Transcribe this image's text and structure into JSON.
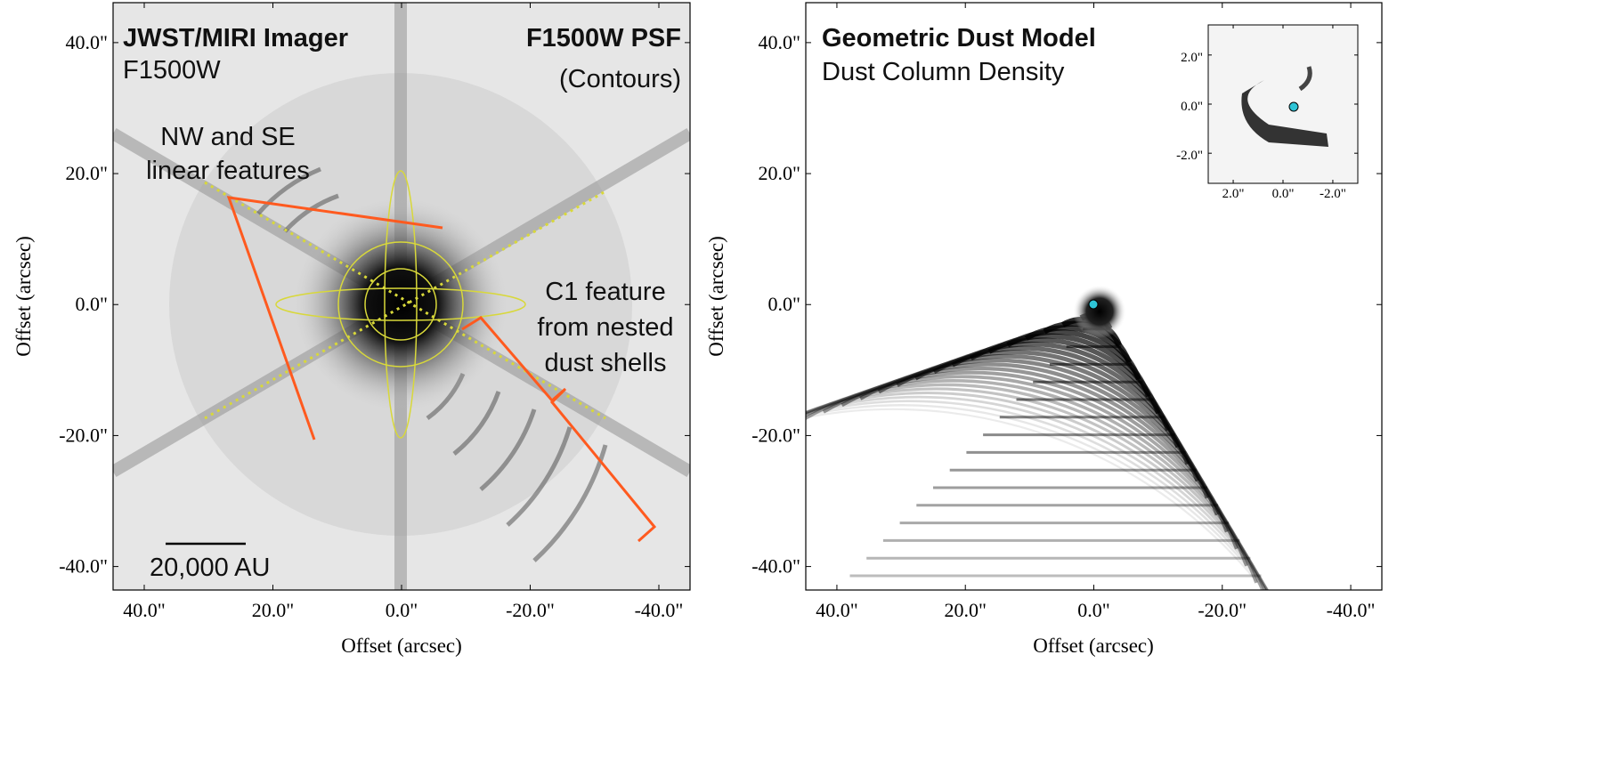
{
  "left_panel": {
    "title": "JWST/MIRI Imager",
    "subtitle": "F1500W",
    "psf_title": "F1500W PSF",
    "psf_subtitle": "(Contours)",
    "annotation_nw_se": [
      "NW and SE",
      "linear features"
    ],
    "annotation_c1": [
      "C1 feature",
      "from nested",
      "dust shells"
    ],
    "scale_bar": "20,000 AU",
    "xlabel": "Offset (arcsec)",
    "ylabel": "Offset (arcsec)",
    "xticks": [
      "40.0\"",
      "20.0\"",
      "0.0\"",
      "-20.0\"",
      "-40.0\""
    ],
    "yticks": [
      "40.0\"",
      "20.0\"",
      "0.0\"",
      "-20.0\"",
      "-40.0\""
    ]
  },
  "right_panel": {
    "title": "Geometric Dust Model",
    "subtitle": "Dust Column Density",
    "xlabel": "Offset (arcsec)",
    "ylabel": "Offset (arcsec)",
    "xticks": [
      "40.0\"",
      "20.0\"",
      "0.0\"",
      "-20.0\"",
      "-40.0\""
    ],
    "yticks": [
      "40.0\"",
      "20.0\"",
      "0.0\"",
      "-20.0\"",
      "-40.0\""
    ],
    "inset": {
      "xticks": [
        "2.0\"",
        "0.0\"",
        "-2.0\""
      ],
      "yticks": [
        "2.0\"",
        "0.0\"",
        "-2.0\""
      ]
    }
  },
  "colors": {
    "annotation": "#ff5a1f",
    "contour": "#d8d83a",
    "marker": "#2ec4d6"
  }
}
